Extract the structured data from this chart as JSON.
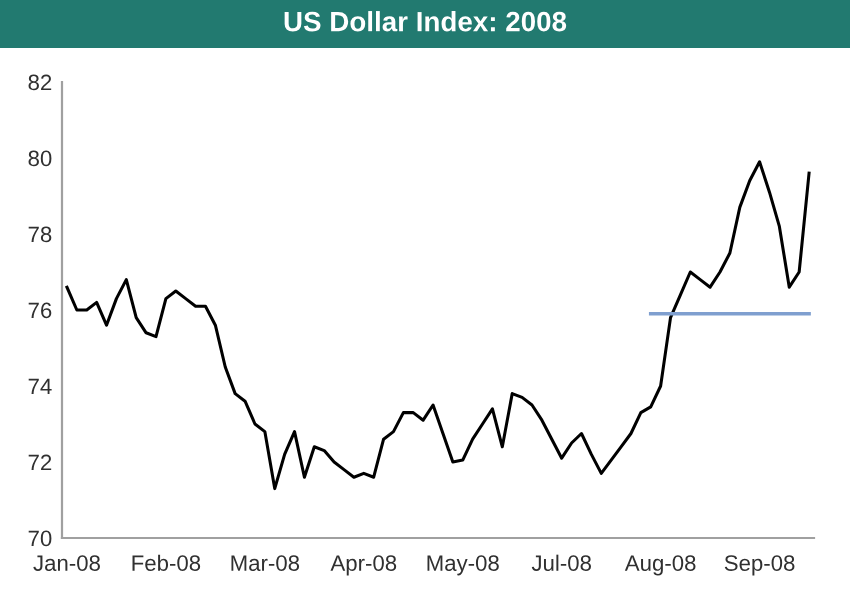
{
  "chart_data": {
    "type": "line",
    "title": "US Dollar Index: 2008",
    "categories": [
      "Jan-08",
      null,
      null,
      null,
      null,
      null,
      null,
      null,
      null,
      null,
      "Feb-08",
      null,
      null,
      null,
      null,
      null,
      null,
      null,
      null,
      null,
      "Mar-08",
      null,
      null,
      null,
      null,
      null,
      null,
      null,
      null,
      null,
      "Apr-08",
      null,
      null,
      null,
      null,
      null,
      null,
      null,
      null,
      null,
      "May-08",
      null,
      null,
      null,
      null,
      null,
      null,
      null,
      null,
      null,
      "Jul-08",
      null,
      null,
      null,
      null,
      null,
      null,
      null,
      null,
      null,
      "Aug-08",
      null,
      null,
      null,
      null,
      null,
      null,
      null,
      null,
      null,
      "Sep-08",
      null,
      null,
      null,
      null,
      null
    ],
    "series": [
      {
        "color": "#000000",
        "values": [
          76.6,
          76.0,
          76.0,
          76.2,
          75.6,
          76.3,
          76.8,
          75.8,
          75.4,
          75.3,
          76.3,
          76.5,
          76.3,
          76.1,
          76.1,
          75.6,
          74.5,
          73.8,
          73.6,
          73.0,
          72.8,
          71.3,
          72.2,
          72.8,
          71.6,
          72.4,
          72.3,
          72.0,
          71.8,
          71.6,
          71.7,
          71.6,
          72.6,
          72.8,
          73.3,
          73.3,
          73.1,
          73.5,
          72.75,
          72.0,
          72.05,
          72.6,
          73.0,
          73.4,
          72.4,
          73.8,
          73.7,
          73.5,
          73.1,
          72.6,
          72.1,
          72.5,
          72.75,
          72.2,
          71.7,
          72.05,
          72.4,
          72.75,
          73.3,
          73.45,
          74.0,
          75.8,
          76.4,
          77.0,
          76.8,
          76.6,
          77.0,
          77.5,
          78.7,
          79.4,
          79.9,
          79.1,
          78.2,
          76.6,
          77.0,
          79.6
        ]
      },
      {
        "type": "line",
        "color": "#7f9fcf",
        "values": [
          null,
          null,
          null,
          null,
          null,
          null,
          null,
          null,
          null,
          null,
          null,
          null,
          null,
          null,
          null,
          null,
          null,
          null,
          null,
          null,
          null,
          null,
          null,
          null,
          null,
          null,
          null,
          null,
          null,
          null,
          null,
          null,
          null,
          null,
          null,
          null,
          null,
          null,
          null,
          null,
          null,
          null,
          null,
          null,
          null,
          null,
          null,
          null,
          null,
          null,
          null,
          null,
          null,
          null,
          null,
          null,
          null,
          null,
          null,
          75.9,
          75.9,
          75.9,
          75.9,
          75.9,
          75.9,
          75.9,
          75.9,
          75.9,
          75.9,
          75.9,
          75.9,
          75.9,
          75.9,
          75.9,
          75.9,
          75.9
        ]
      }
    ],
    "ylim": [
      70,
      82
    ],
    "yticks": [
      70,
      72,
      74,
      76,
      78,
      80,
      82
    ],
    "grid": false,
    "legend": false
  }
}
